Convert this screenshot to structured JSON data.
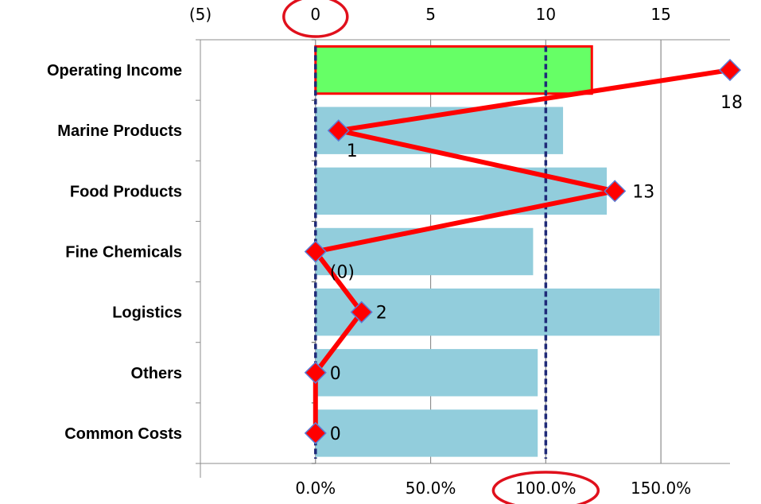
{
  "chart_data": {
    "type": "bar",
    "categories": [
      "Operating Income",
      "Marine Products",
      "Food Products",
      "Fine Chemicals",
      "Logistics",
      "Others",
      "Common Costs"
    ],
    "series": [
      {
        "type": "bar",
        "axis": "bottom",
        "values": [
          120.0,
          107.5,
          126.5,
          94.5,
          149.5,
          96.5,
          96.5
        ]
      },
      {
        "type": "line",
        "axis": "top",
        "values": [
          18,
          1,
          13,
          0,
          2,
          0,
          0
        ],
        "data_labels": [
          "18",
          "1",
          "13",
          "(0)",
          "2",
          "0",
          "0"
        ]
      }
    ],
    "top_axis": {
      "range": [
        -5,
        18
      ],
      "ticks": [
        -5,
        0,
        5,
        10,
        15
      ],
      "tick_labels": [
        "(5)",
        "0",
        "5",
        "10",
        "15"
      ]
    },
    "bottom_axis": {
      "range": [
        -50,
        180
      ],
      "ticks": [
        0,
        50,
        100,
        150
      ],
      "tick_labels": [
        "0.0%",
        "50.0%",
        "100.0%",
        "150.0%"
      ]
    },
    "reference_lines": [
      {
        "axis": "top",
        "value": 0,
        "style": "dashed",
        "color": "#1f2a78"
      },
      {
        "axis": "bottom",
        "value": 100,
        "style": "dashed",
        "color": "#1f2a78"
      }
    ],
    "highlight_circles": [
      "top tick 0",
      "bottom tick 100.0%"
    ],
    "grid": true,
    "colors": {
      "bar": "#92cddc",
      "highlight_bar": "#66ff66",
      "highlight_bar_border": "#ff0000",
      "line": "#ff0000",
      "marker": "#ff0000",
      "marker_edge": "#5b7bd5",
      "ref_line": "#1f2a78"
    }
  }
}
